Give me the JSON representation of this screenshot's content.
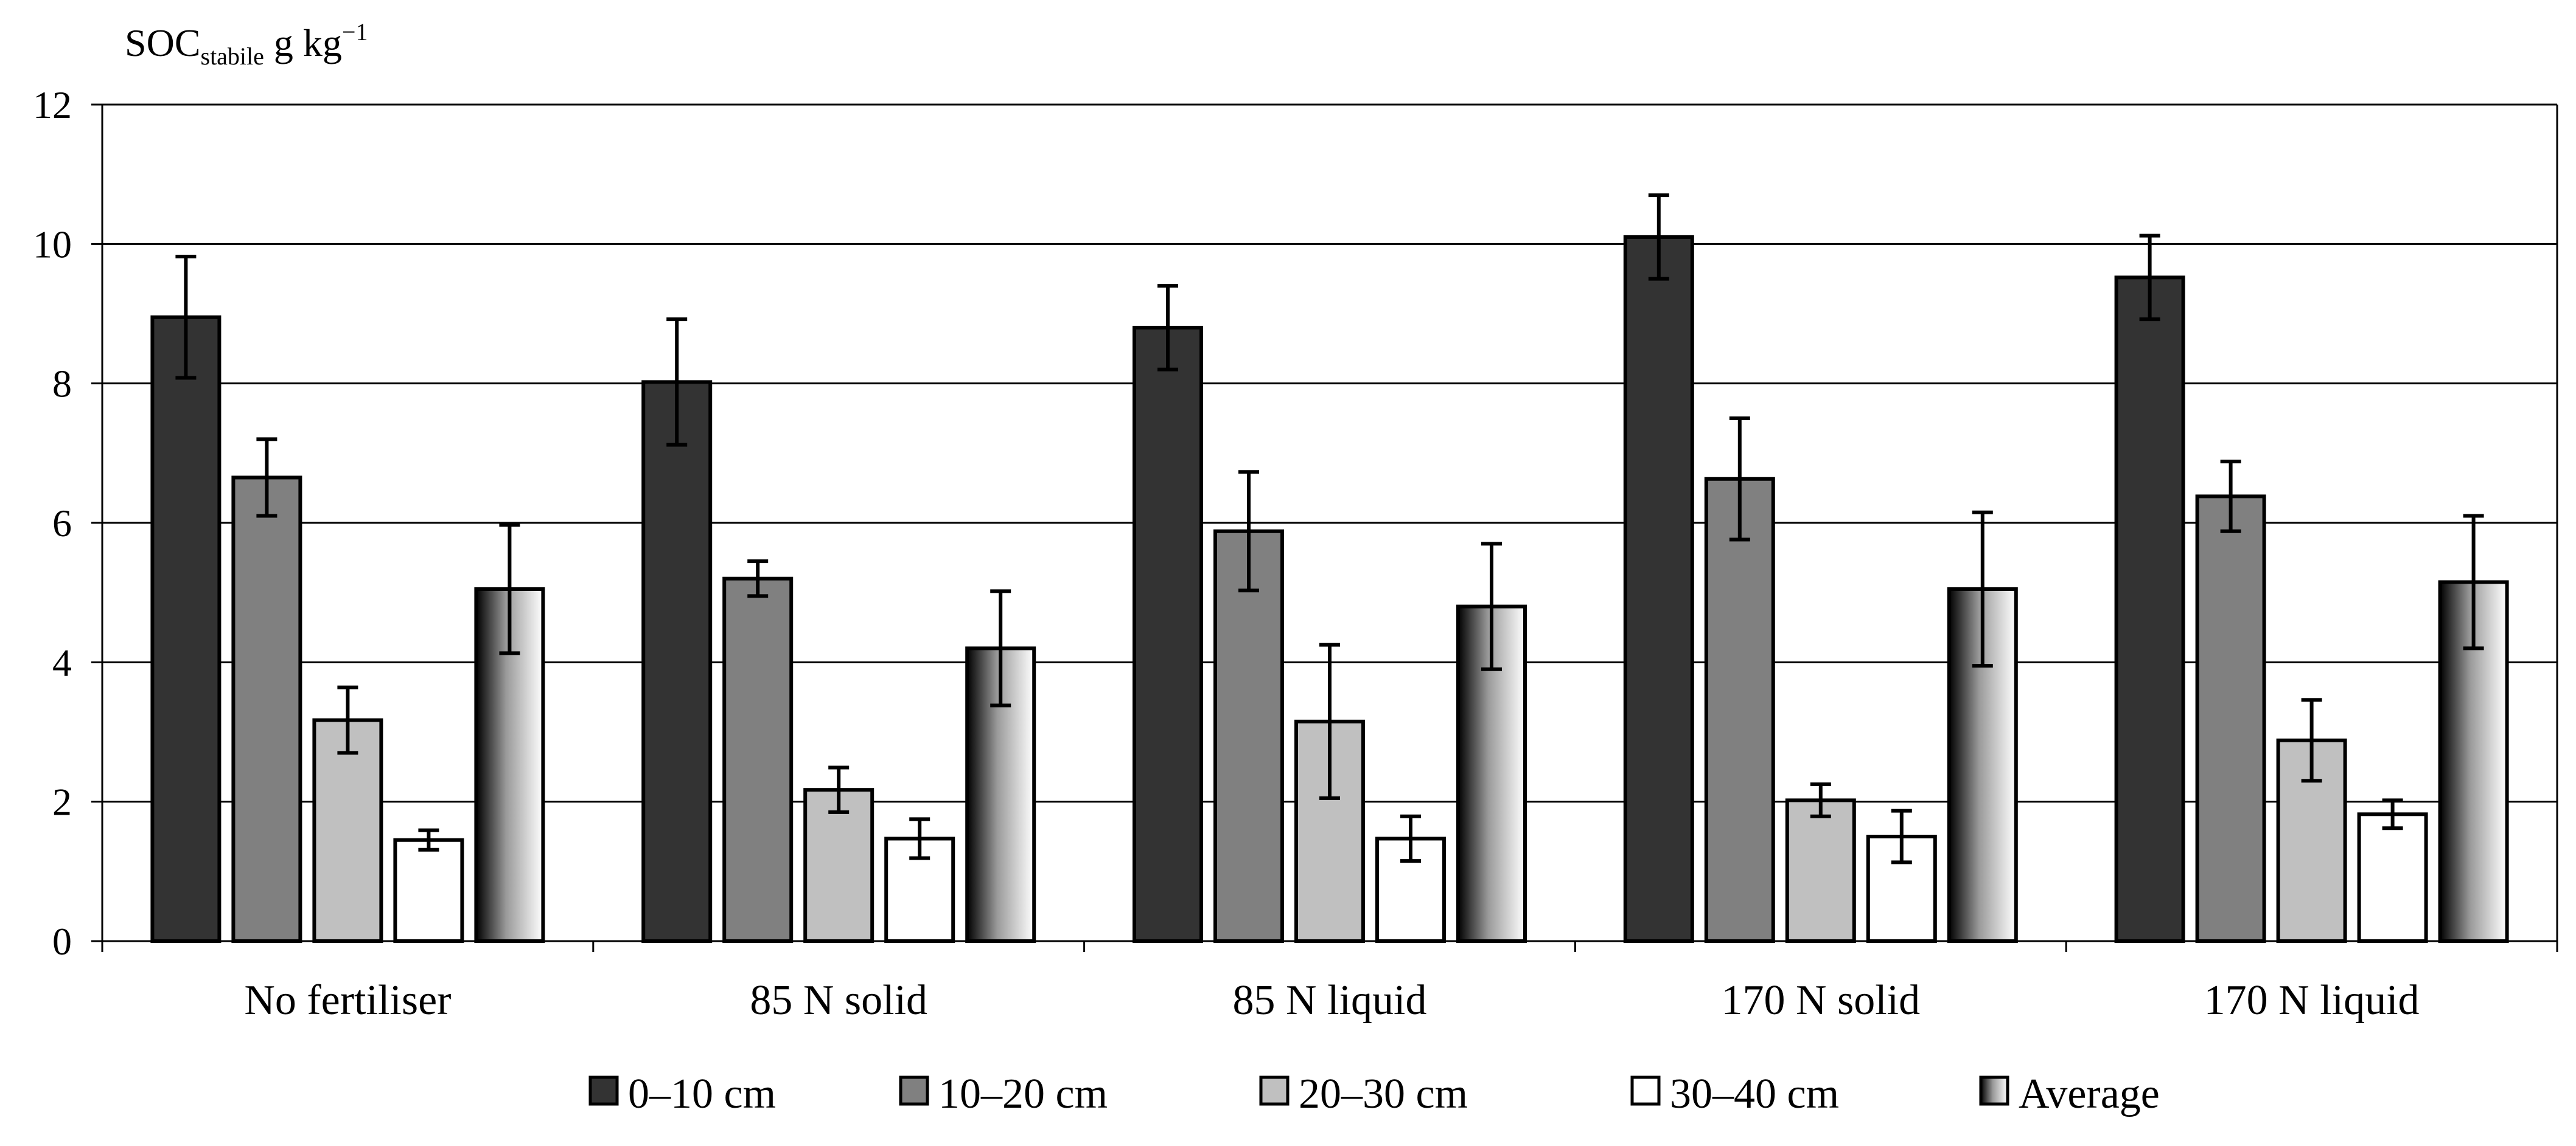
{
  "chart_data": {
    "type": "bar",
    "title": "",
    "ylabel": {
      "prefix": "SOC",
      "subscript": "stabile",
      "unit": " g kg",
      "superscript": "−1"
    },
    "xlabel": "",
    "ylim": [
      0,
      12
    ],
    "yticks": [
      "0",
      "2",
      "4",
      "6",
      "8",
      "10",
      "12"
    ],
    "grid": true,
    "legend_position": "bottom",
    "categories": [
      "No fertiliser",
      "85 N solid",
      "85 N liquid",
      "170 N solid",
      "170 N liquid"
    ],
    "series": [
      {
        "name": "0–10 cm",
        "color": "#333333",
        "values": [
          8.95,
          8.02,
          8.8,
          10.1,
          9.52
        ],
        "errors": [
          0.87,
          0.9,
          0.6,
          0.6,
          0.6
        ]
      },
      {
        "name": "10–20 cm",
        "color": "#808080",
        "values": [
          6.65,
          5.2,
          5.88,
          6.63,
          6.38
        ],
        "errors": [
          0.55,
          0.25,
          0.85,
          0.87,
          0.5
        ]
      },
      {
        "name": "20–30 cm",
        "color": "#c0c0c0",
        "values": [
          3.17,
          2.17,
          3.15,
          2.02,
          2.88
        ],
        "errors": [
          0.47,
          0.32,
          1.1,
          0.23,
          0.58
        ]
      },
      {
        "name": "30–40 cm",
        "color": "#ffffff",
        "values": [
          1.45,
          1.47,
          1.47,
          1.5,
          1.82
        ],
        "errors": [
          0.14,
          0.28,
          0.32,
          0.37,
          0.2
        ]
      },
      {
        "name": "Average",
        "color": "gradient",
        "values": [
          5.05,
          4.2,
          4.8,
          5.05,
          5.15
        ],
        "errors": [
          0.92,
          0.82,
          0.9,
          1.1,
          0.95
        ]
      }
    ]
  }
}
